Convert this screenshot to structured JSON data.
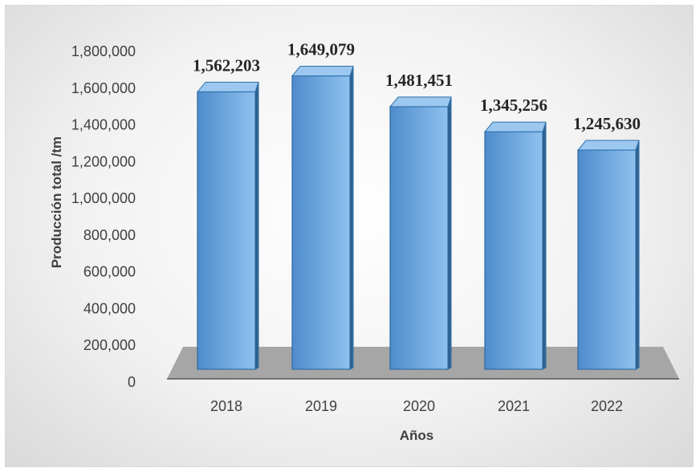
{
  "chart_data": {
    "type": "bar",
    "categories": [
      "2018",
      "2019",
      "2020",
      "2021",
      "2022"
    ],
    "values": [
      1562203,
      1649079,
      1481451,
      1345256,
      1245630
    ],
    "data_labels": [
      "1,562,203",
      "1,649,079",
      "1,481,451",
      "1,345,256",
      "1,245,630"
    ],
    "xlabel": "Años",
    "ylabel": "Producción total /tm",
    "ylim": [
      0,
      1800000
    ],
    "yticks": [
      0,
      200000,
      400000,
      600000,
      800000,
      1000000,
      1200000,
      1400000,
      1600000,
      1800000
    ],
    "ytick_labels": [
      "0",
      "200,000",
      "400,000",
      "600,000",
      "800,000",
      "1,000,000",
      "1,200,000",
      "1,400,000",
      "1,600,000",
      "1,800,000"
    ],
    "grid": false,
    "legend": "none",
    "style": "3d-column",
    "colors": {
      "bar_front": "#5b9bd5",
      "bar_front_light": "#8fc1ee",
      "bar_side": "#2e5f8c",
      "bar_top": "#9cc8f0",
      "bar_edge": "#2f6fa8",
      "floor": "#a6a6a6",
      "axis": "#404040"
    }
  }
}
